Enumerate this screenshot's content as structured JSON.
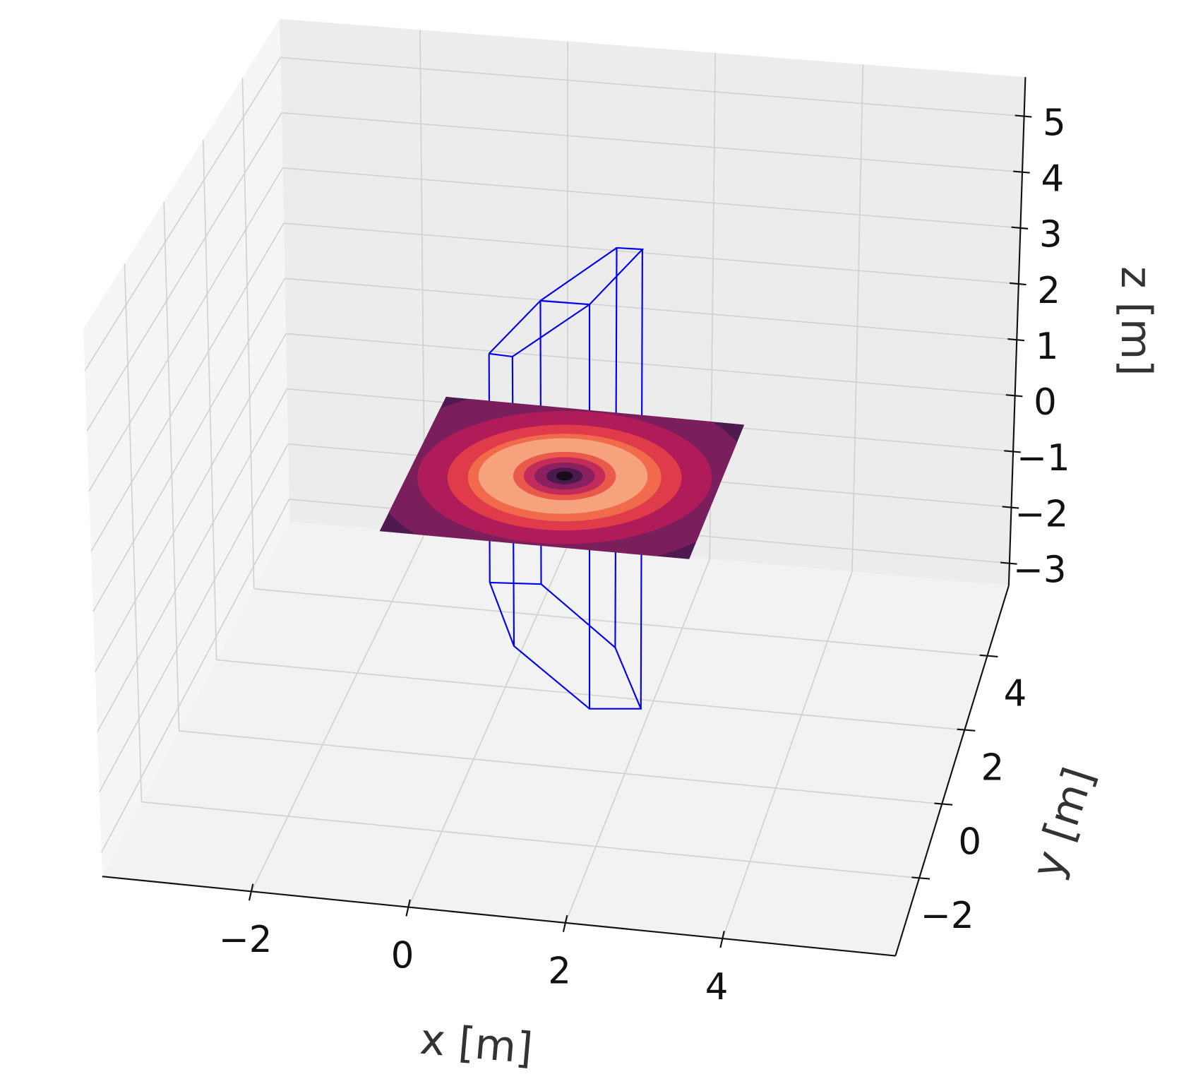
{
  "chart_data": {
    "type": "surface3d",
    "xlabel": "x [m]",
    "ylabel": "y [m]",
    "zlabel": "z [m]",
    "xlim": [
      -3.9,
      6.2
    ],
    "ylim": [
      -4.1,
      5.9
    ],
    "zlim": [
      -3.4,
      5.7
    ],
    "xticks": [
      {
        "value": -2,
        "label": "−2"
      },
      0,
      2,
      4
    ],
    "yticks": [
      {
        "value": -2,
        "label": "−2"
      },
      0,
      2,
      4
    ],
    "zticks": [
      {
        "value": -3,
        "label": "−3"
      },
      {
        "value": -2,
        "label": "−2"
      },
      {
        "value": -1,
        "label": "−1"
      },
      0,
      1,
      2,
      3,
      4,
      5
    ],
    "grid": true
  }
}
